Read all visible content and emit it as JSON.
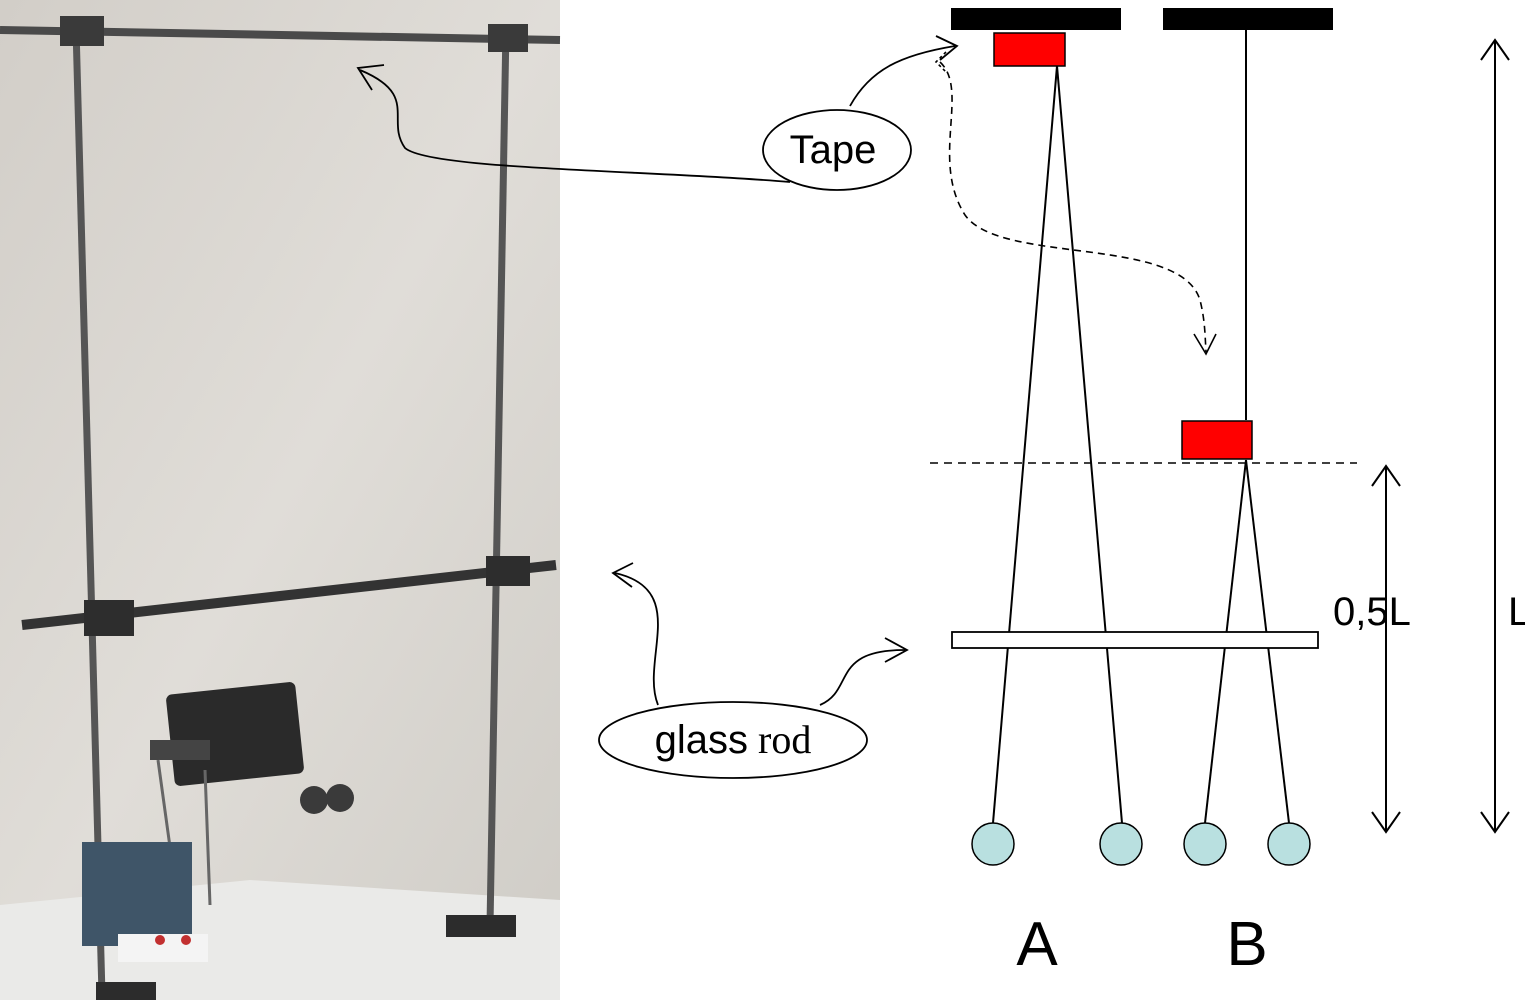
{
  "labels": {
    "tape": "Tape",
    "glass_word": "glass",
    "rod_word": "rod",
    "pendulum_a": "A",
    "pendulum_b": "B",
    "half_length": "0,5L",
    "full_length": "L"
  },
  "colors": {
    "tape": "#ff0000",
    "ball": "#b9e0e0",
    "line": "#000000",
    "photo_wall": "#d9d6d1",
    "photo_table": "#e9e9e7",
    "rod_metal": "#5a5a5a"
  },
  "icons": {
    "tape_pointer": "curved-arrow-icon",
    "glass_rod_pointer": "curved-arrow-icon",
    "tape_move": "dashed-arrow-icon",
    "length_marker": "double-arrow-icon"
  }
}
